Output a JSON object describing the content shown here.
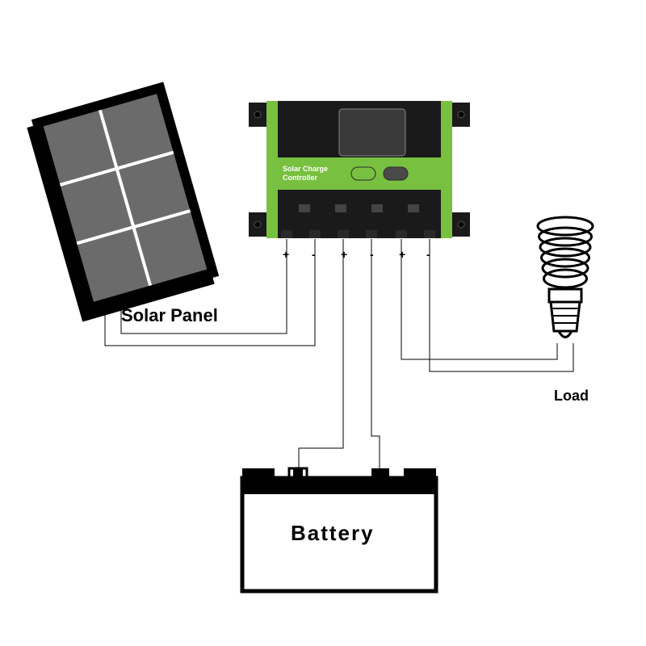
{
  "diagram": {
    "type": "infographic",
    "background_color": "#ffffff",
    "wire_color": "#000000",
    "wire_width": 1,
    "font_family": "Arial"
  },
  "labels": {
    "solar_panel": {
      "text": "Solar Panel",
      "fontsize": 22,
      "weight": "bold",
      "color": "#000000"
    },
    "battery": {
      "text": "Battery",
      "fontsize": 26,
      "weight": "bold",
      "color": "#000000"
    },
    "load": {
      "text": "Load",
      "fontsize": 18,
      "weight": "bold",
      "color": "#000000"
    },
    "controller": {
      "text": "Solar Charge",
      "text2": "Controller",
      "fontsize": 9,
      "color": "#ffffff"
    }
  },
  "terminals": {
    "pairs": [
      {
        "pos": "+",
        "neg": "-"
      },
      {
        "pos": "+",
        "neg": "-"
      },
      {
        "pos": "+",
        "neg": "-"
      }
    ],
    "fontsize": 14,
    "color": "#000000"
  },
  "controller": {
    "body_color": "#1a1a1a",
    "stripe_color": "#78c040",
    "screen_color": "#3a3a3a",
    "screen_border": "#888888",
    "mount_ear_color": "#1a1a1a",
    "button_colors": [
      "#78c040",
      "#4a4a4a"
    ]
  },
  "solar_panel": {
    "frame_color": "#000000",
    "cell_color": "#6b6b6b",
    "divider_color": "#ffffff"
  },
  "battery": {
    "stroke": "#000000",
    "fill": "#ffffff",
    "band_color": "#000000",
    "terminal_color": "#000000"
  },
  "bulb": {
    "stroke": "#000000",
    "fill": "#ffffff"
  }
}
